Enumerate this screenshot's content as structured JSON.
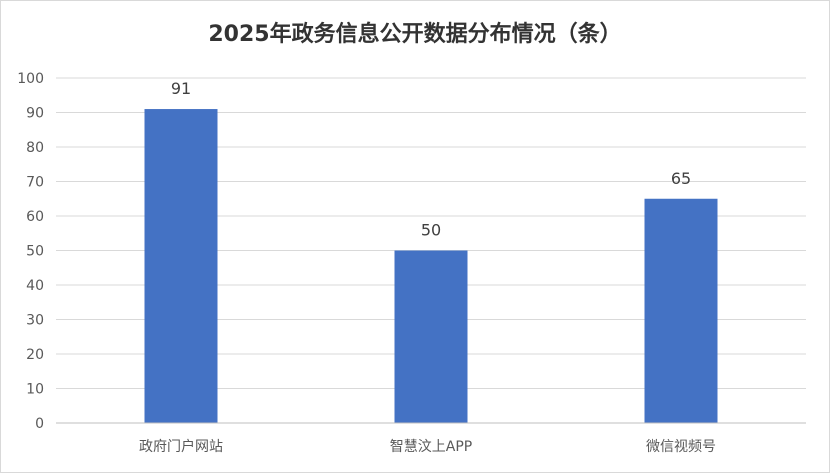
{
  "chart_data": {
    "type": "bar",
    "title": "2025年政务信息公开数据分布情况（条）",
    "categories": [
      "政府门户网站",
      "智慧汶上APP",
      "微信视频号"
    ],
    "values": [
      91,
      50,
      65
    ],
    "data_labels": [
      "91",
      "50",
      "65"
    ],
    "xlabel": "",
    "ylabel": "",
    "ylim": [
      0,
      100
    ],
    "yticks": [
      0,
      10,
      20,
      30,
      40,
      50,
      60,
      70,
      80,
      90,
      100
    ],
    "grid": true,
    "legend": "none",
    "colors": {
      "bar": "#4472C4",
      "grid": "#d9d9d9",
      "axis": "#bfbfbf"
    }
  }
}
